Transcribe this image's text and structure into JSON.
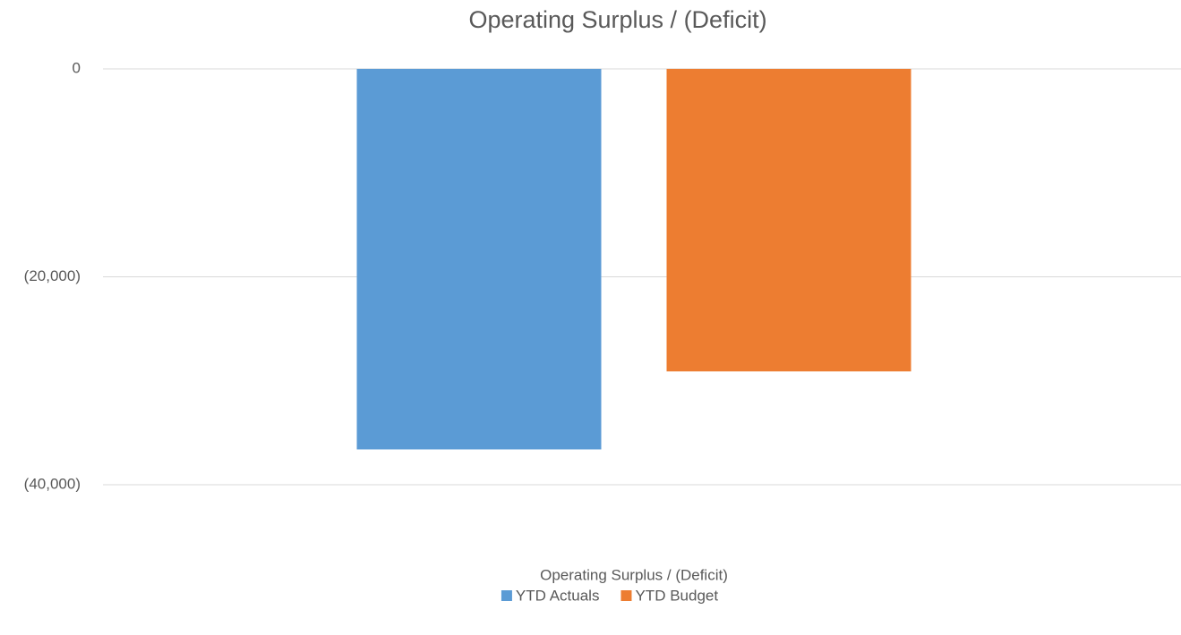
{
  "chart_data": {
    "type": "bar",
    "title": "Operating Surplus / (Deficit)",
    "categories": [
      "Operating Surplus / (Deficit)"
    ],
    "series": [
      {
        "name": "YTD Actuals",
        "color": "#5b9bd5",
        "values": [
          -36600
        ]
      },
      {
        "name": "YTD Budget",
        "color": "#ed7d31",
        "values": [
          -29100
        ]
      }
    ],
    "ylim": [
      -40000,
      0
    ],
    "yticks": [
      {
        "value": -40000,
        "label": "(40,000)"
      },
      {
        "value": -20000,
        "label": "(20,000)"
      },
      0
    ],
    "grid": true,
    "legend": "bottom"
  }
}
